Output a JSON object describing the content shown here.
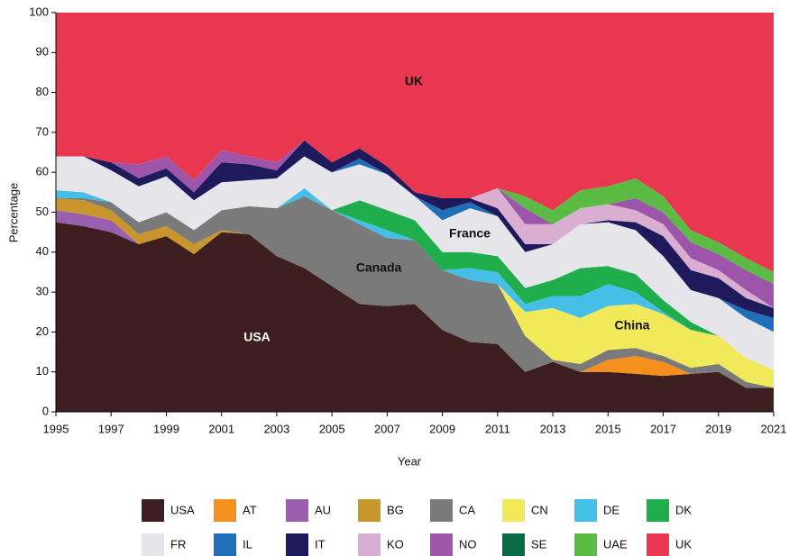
{
  "chart_data": {
    "type": "stacked_area",
    "x_label": "Year",
    "y_label": "Percentage",
    "x": [
      1995,
      1996,
      1997,
      1998,
      1999,
      2000,
      2001,
      2002,
      2003,
      2004,
      2005,
      2006,
      2007,
      2008,
      2009,
      2010,
      2011,
      2012,
      2013,
      2014,
      2015,
      2016,
      2017,
      2018,
      2019,
      2020,
      2021
    ],
    "xlim": [
      1995,
      2021
    ],
    "xticks": [
      1995,
      1997,
      1999,
      2001,
      2003,
      2005,
      2007,
      2009,
      2011,
      2013,
      2015,
      2017,
      2019,
      2021
    ],
    "ylim": [
      0,
      100
    ],
    "yticks": [
      0,
      10,
      20,
      30,
      40,
      50,
      60,
      70,
      80,
      90,
      100
    ],
    "annotations": [
      "UK",
      "France",
      "Canada",
      "USA",
      "China"
    ],
    "series": [
      {
        "name": "USA",
        "color": "#3d1f1f",
        "values": [
          47.5,
          46.5,
          45,
          42,
          44,
          39.5,
          45,
          44.5,
          39,
          36,
          31.5,
          27,
          26.5,
          27,
          20.5,
          17.5,
          17,
          10,
          12.5,
          10,
          10,
          9.5,
          9,
          9.5,
          10,
          6,
          6
        ]
      },
      {
        "name": "AT",
        "color": "#f5901e",
        "values": [
          0,
          0,
          0,
          0,
          0,
          0,
          0,
          0,
          0,
          0,
          0,
          0,
          0,
          0,
          0,
          0,
          0,
          0,
          0,
          0,
          3,
          4.5,
          3.5,
          0,
          0,
          0,
          0
        ]
      },
      {
        "name": "AU",
        "color": "#9b5fb0",
        "values": [
          3,
          3,
          3,
          0,
          0,
          0,
          0,
          0,
          0,
          0,
          0,
          0,
          0,
          0,
          0,
          0,
          0,
          0,
          0,
          0,
          0,
          0,
          0,
          0,
          0,
          0,
          0
        ]
      },
      {
        "name": "BG",
        "color": "#c9962b",
        "values": [
          3,
          3.5,
          2.5,
          2.5,
          2.5,
          2.5,
          0.5,
          0,
          0,
          0,
          0,
          0,
          0,
          0,
          0,
          0,
          0,
          0,
          0,
          0,
          0,
          0,
          0,
          0,
          0,
          0,
          0
        ]
      },
      {
        "name": "CA",
        "color": "#7a7a7a",
        "values": [
          0,
          0.5,
          2,
          3,
          3.5,
          3.5,
          5,
          7,
          12,
          18,
          19,
          20,
          17,
          16,
          15,
          15.5,
          15,
          9,
          0.5,
          2,
          2.5,
          2,
          1.5,
          1.5,
          2,
          1.5,
          0
        ]
      },
      {
        "name": "CN",
        "color": "#f0ea5a",
        "values": [
          0,
          0,
          0,
          0,
          0,
          0,
          0,
          0,
          0,
          0,
          0,
          0,
          0,
          0,
          0,
          0,
          0,
          6,
          13,
          11.5,
          11,
          11,
          10.5,
          9.5,
          7,
          6,
          4.5
        ]
      },
      {
        "name": "DE",
        "color": "#45bfe8",
        "values": [
          2,
          1.5,
          0,
          0,
          0,
          0,
          0,
          0,
          0,
          2,
          0,
          1,
          2,
          0,
          0,
          3,
          3,
          2,
          3,
          5.5,
          5.5,
          3,
          0.5,
          0,
          0,
          0,
          0
        ]
      },
      {
        "name": "DK",
        "color": "#1fae4b",
        "values": [
          0,
          0,
          0,
          0,
          0,
          0,
          0,
          0,
          0,
          0,
          0,
          5,
          5,
          5,
          4.5,
          4,
          4,
          4,
          4,
          7,
          4.5,
          4.5,
          3,
          2,
          0,
          0,
          0
        ]
      },
      {
        "name": "FR",
        "color": "#e6e6ea",
        "values": [
          8.5,
          9,
          8,
          9,
          9,
          7.5,
          7,
          6.5,
          7.5,
          8,
          9.5,
          9,
          9,
          6,
          8,
          11,
          10,
          9,
          9,
          11,
          11,
          11,
          11,
          8,
          9.5,
          10,
          9.5
        ]
      },
      {
        "name": "IL",
        "color": "#1f6fb8",
        "values": [
          0,
          0,
          0,
          0,
          0,
          0,
          0,
          0,
          0,
          0,
          0,
          1.5,
          0,
          0,
          2.5,
          1.5,
          0,
          0,
          0,
          0,
          0,
          0,
          0,
          0,
          0,
          2,
          3.5
        ]
      },
      {
        "name": "IT",
        "color": "#1e1a5c",
        "values": [
          0,
          0,
          2,
          2,
          2,
          2,
          5,
          4,
          2,
          4,
          2.5,
          2.5,
          2,
          1,
          3,
          1,
          2,
          2,
          0,
          0,
          0.5,
          2,
          5,
          5,
          5,
          3,
          2.5
        ]
      },
      {
        "name": "KO",
        "color": "#d9aed0",
        "values": [
          0,
          0,
          0,
          0,
          0,
          0,
          0,
          0,
          0,
          0,
          0,
          0,
          0,
          0,
          0,
          0,
          5,
          5,
          5,
          4,
          4,
          3,
          3,
          3,
          2,
          2,
          0
        ]
      },
      {
        "name": "NO",
        "color": "#9d55aa",
        "values": [
          0,
          0,
          0,
          3.5,
          3,
          3,
          3,
          2,
          2,
          0,
          0,
          0,
          0,
          0,
          0,
          0,
          0,
          4,
          0,
          0,
          0,
          3,
          3,
          4,
          4,
          5,
          6
        ]
      },
      {
        "name": "SE",
        "color": "#0a6b45",
        "values": [
          0,
          0,
          0,
          0,
          0,
          0,
          0,
          0,
          0,
          0,
          0,
          0,
          0,
          0,
          0,
          0,
          0,
          0,
          0,
          0,
          0,
          0,
          0,
          0,
          0,
          0,
          0
        ]
      },
      {
        "name": "UAE",
        "color": "#5cbb45",
        "values": [
          0,
          0,
          0,
          0,
          0,
          0,
          0,
          0,
          0,
          0,
          0,
          0,
          0,
          0,
          0,
          0,
          0,
          3,
          3.5,
          4.5,
          4.5,
          5,
          4,
          3,
          3,
          3,
          3
        ]
      },
      {
        "name": "UK",
        "color": "#e8374f",
        "values": [
          36,
          36,
          37.5,
          38,
          36,
          42,
          34.5,
          36,
          37.5,
          32,
          37.5,
          34,
          38.5,
          45,
          46.5,
          46.5,
          44,
          46,
          49.5,
          44.5,
          43.5,
          41.5,
          46,
          54.5,
          57.5,
          61.5,
          65
        ]
      }
    ]
  }
}
